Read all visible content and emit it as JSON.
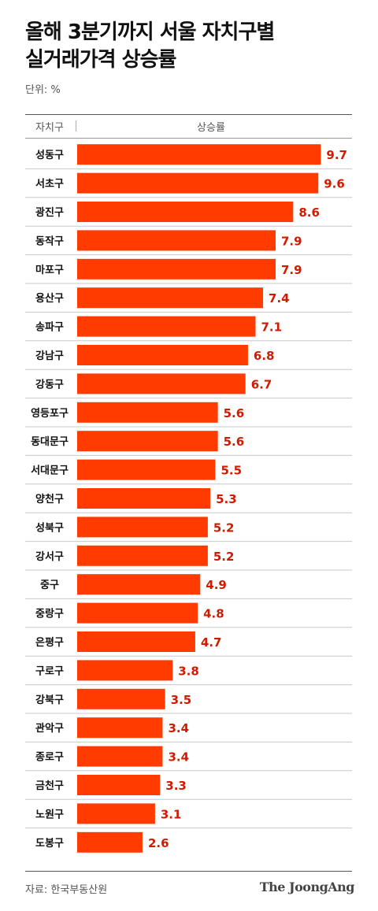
{
  "title_line1": "올해 3분기까지 서울 자치구별",
  "title_line2": "실거래가격 상승률",
  "unit": "단위: %",
  "source": "자료: 한국부동산원",
  "logo": "The JoongAng",
  "colors": {
    "bar": "#ff3b00",
    "value": "#d11a00",
    "gridline": "#c8c8c8"
  },
  "chart_data": {
    "type": "bar",
    "orientation": "horizontal",
    "header_category": "자치구",
    "header_value": "상승률",
    "xlim": [
      0,
      10
    ],
    "categories": [
      "성동구",
      "서초구",
      "광진구",
      "동작구",
      "마포구",
      "용산구",
      "송파구",
      "강남구",
      "강동구",
      "영등포구",
      "동대문구",
      "서대문구",
      "양천구",
      "성북구",
      "강서구",
      "중구",
      "중랑구",
      "은평구",
      "구로구",
      "강북구",
      "관악구",
      "종로구",
      "금천구",
      "노원구",
      "도봉구"
    ],
    "values": [
      9.7,
      9.6,
      8.6,
      7.9,
      7.9,
      7.4,
      7.1,
      6.8,
      6.7,
      5.6,
      5.6,
      5.5,
      5.3,
      5.2,
      5.2,
      4.9,
      4.8,
      4.7,
      3.8,
      3.5,
      3.4,
      3.4,
      3.3,
      3.1,
      2.6
    ],
    "labels": [
      "9.7",
      "9.6",
      "8.6",
      "7.9",
      "7.9",
      "7.4",
      "7.1",
      "6.8",
      "6.7",
      "5.6",
      "5.6",
      "5.5",
      "5.3",
      "5.2",
      "5.2",
      "4.9",
      "4.8",
      "4.7",
      "3.8",
      "3.5",
      "3.4",
      "3.4",
      "3.3",
      "3.1",
      "2.6"
    ]
  }
}
